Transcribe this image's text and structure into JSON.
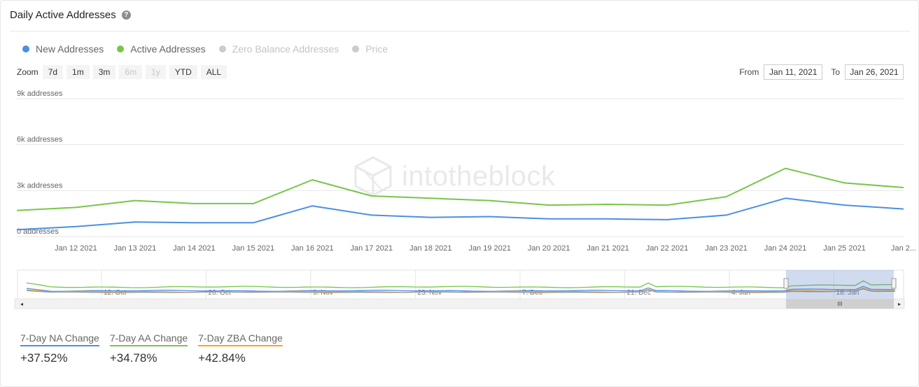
{
  "header": {
    "title": "Daily Active Addresses",
    "help_icon": "?"
  },
  "legend": [
    {
      "label": "New Addresses",
      "color": "#4a90e2",
      "active": true
    },
    {
      "label": "Active Addresses",
      "color": "#76c64a",
      "active": true
    },
    {
      "label": "Zero Balance Addresses",
      "color": "#cccccc",
      "active": false
    },
    {
      "label": "Price",
      "color": "#cccccc",
      "active": false
    }
  ],
  "zoom": {
    "label": "Zoom",
    "buttons": [
      {
        "label": "7d",
        "enabled": true
      },
      {
        "label": "1m",
        "enabled": true
      },
      {
        "label": "3m",
        "enabled": true
      },
      {
        "label": "6m",
        "enabled": false
      },
      {
        "label": "1y",
        "enabled": false
      },
      {
        "label": "YTD",
        "enabled": true
      },
      {
        "label": "ALL",
        "enabled": true
      }
    ]
  },
  "range": {
    "from_label": "From",
    "from_value": "Jan 11, 2021",
    "to_label": "To",
    "to_value": "Jan 26, 2021"
  },
  "watermark": "intotheblock",
  "chart_data": {
    "type": "line",
    "x": [
      "Jan 11 2021",
      "Jan 12 2021",
      "Jan 13 2021",
      "Jan 14 2021",
      "Jan 15 2021",
      "Jan 16 2021",
      "Jan 17 2021",
      "Jan 18 2021",
      "Jan 19 2021",
      "Jan 20 2021",
      "Jan 21 2021",
      "Jan 22 2021",
      "Jan 23 2021",
      "Jan 24 2021",
      "Jan 25 2021",
      "Jan 26 2021"
    ],
    "x_tick_labels": [
      "Jan 12 2021",
      "Jan 13 2021",
      "Jan 14 2021",
      "Jan 15 2021",
      "Jan 16 2021",
      "Jan 17 2021",
      "Jan 18 2021",
      "Jan 19 2021",
      "Jan 20 2021",
      "Jan 21 2021",
      "Jan 22 2021",
      "Jan 23 2021",
      "Jan 24 2021",
      "Jan 25 2021",
      "Jan 2..."
    ],
    "y_tick_labels": [
      "0 addresses",
      "3k addresses",
      "6k addresses",
      "9k addresses"
    ],
    "y_ticks": [
      0,
      3000,
      6000,
      9000
    ],
    "ylim": [
      0,
      9000
    ],
    "grid": true,
    "series": [
      {
        "name": "Active Addresses",
        "color": "#76c64a",
        "values": [
          1700,
          1900,
          2350,
          2150,
          2150,
          3700,
          2650,
          2500,
          2350,
          2050,
          2100,
          2050,
          2600,
          4450,
          3500,
          3200
        ]
      },
      {
        "name": "New Addresses",
        "color": "#4a90e2",
        "values": [
          450,
          650,
          950,
          900,
          900,
          2000,
          1400,
          1250,
          1300,
          1150,
          1150,
          1100,
          1400,
          2500,
          2050,
          1800
        ]
      }
    ],
    "navigator": {
      "tick_labels": [
        "12. Oct",
        "26. Oct",
        "9. Nov",
        "23. Nov",
        "7. Dec",
        "21. Dec",
        "4. Jan",
        "18. Jan"
      ],
      "scroll_thumb": "III"
    }
  },
  "stats": [
    {
      "label": "7-Day NA Change",
      "value": "+37.52%",
      "color": "#4a90e2"
    },
    {
      "label": "7-Day AA Change",
      "value": "+34.78%",
      "color": "#76c64a"
    },
    {
      "label": "7-Day ZBA Change",
      "value": "+42.84%",
      "color": "#f5a623"
    }
  ]
}
